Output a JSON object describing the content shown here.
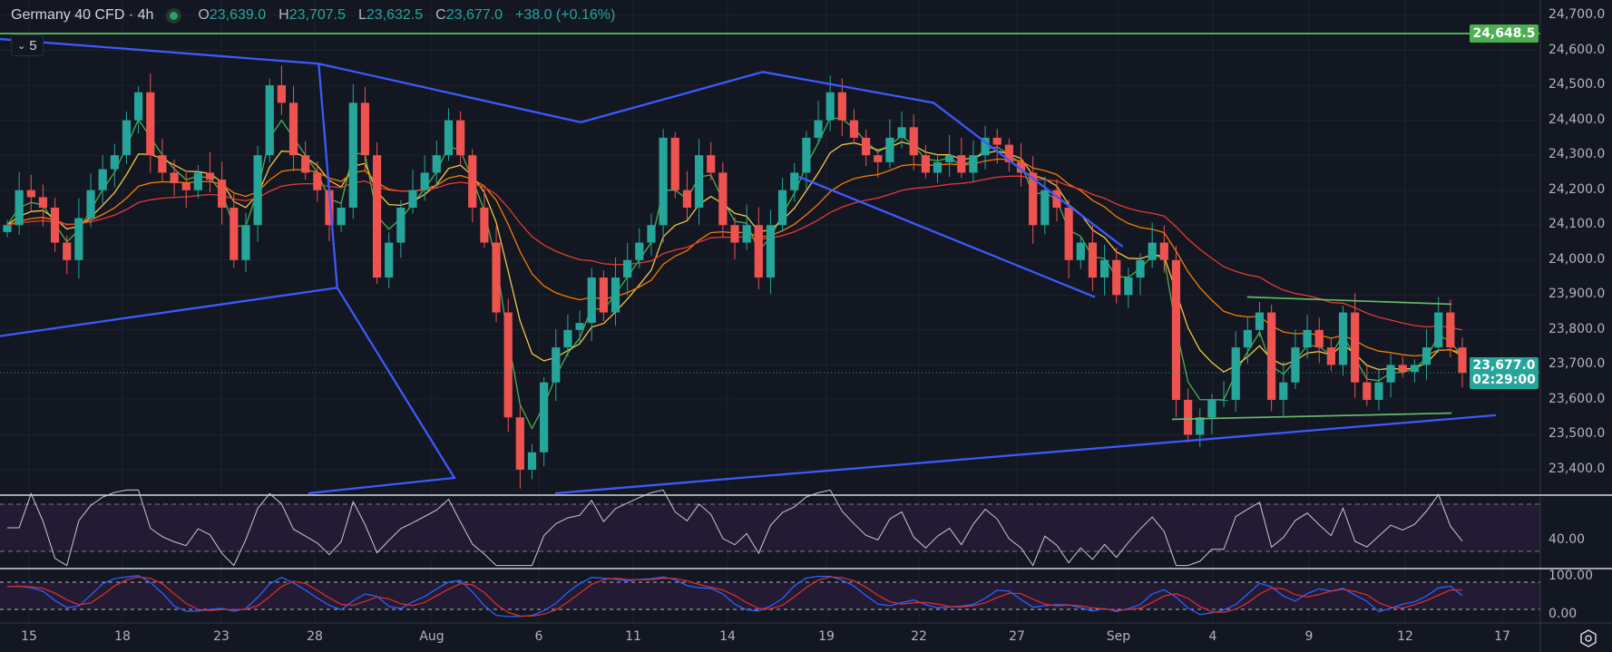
{
  "header": {
    "symbol": "Germany 40 CFD · 4h",
    "open_label": "O",
    "open": "23,639.0",
    "high_label": "H",
    "high": "23,707.5",
    "low_label": "L",
    "low": "23,632.5",
    "close_label": "C",
    "close": "23,677.0",
    "change": "+38.0 (+0.16%)",
    "market_status_icon": "market-open-dot",
    "collapse_count": "5"
  },
  "price_axis": {
    "ticks": [
      "24,700.0",
      "24,600.0",
      "24,500.0",
      "24,400.0",
      "24,300.0",
      "24,200.0",
      "24,100.0",
      "24,000.0",
      "23,900.0",
      "23,800.0",
      "23,700.0",
      "23,600.0",
      "23,500.0",
      "23,400.0"
    ],
    "alert_line_label": "24,648.5",
    "current_price_label": "23,677.0",
    "countdown": "02:29:00"
  },
  "rsi_axis": {
    "label": "40.00"
  },
  "stoch_axis": {
    "top": "100.00",
    "bottom": "0.00"
  },
  "time_axis": {
    "labels": [
      "15",
      "18",
      "23",
      "28",
      "Aug",
      "6",
      "11",
      "14",
      "19",
      "22",
      "27",
      "Sep",
      "4",
      "9",
      "12",
      "17"
    ]
  },
  "colors": {
    "background": "#131722",
    "up": "#26a69a",
    "down": "#ef5350",
    "ma_fast": "#4caf50",
    "ma_mid": "#f5c542",
    "ma_slow": "#f57c00",
    "ma_long": "#e53935",
    "trendline": "#3d5afe",
    "alert_line": "#4caf50",
    "rsi": "#c9cbd1",
    "stoch_k": "#2962ff",
    "stoch_d": "#d32f2f"
  },
  "chart_data": {
    "type": "candlestick",
    "title": "Germany 40 CFD · 4h",
    "ylim": [
      23350,
      24720
    ],
    "y_ticks": [
      23400,
      23500,
      23600,
      23700,
      23800,
      23900,
      24000,
      24100,
      24200,
      24300,
      24400,
      24500,
      24600,
      24700
    ],
    "alert_level": 24648.5,
    "last_price": 23677.0,
    "closes": [
      24100,
      24200,
      24180,
      24150,
      24050,
      24000,
      24120,
      24200,
      24260,
      24300,
      24400,
      24480,
      24300,
      24250,
      24220,
      24200,
      24250,
      24230,
      24150,
      24000,
      24100,
      24300,
      24500,
      24450,
      24300,
      24250,
      24200,
      24100,
      24150,
      24450,
      24300,
      23950,
      24050,
      24150,
      24200,
      24250,
      24300,
      24400,
      24300,
      24150,
      24050,
      23850,
      23550,
      23400,
      23450,
      23650,
      23750,
      23800,
      23820,
      23950,
      23850,
      23950,
      24000,
      24050,
      24100,
      24350,
      24200,
      24150,
      24300,
      24250,
      24100,
      24050,
      24100,
      23950,
      24100,
      24200,
      24250,
      24350,
      24400,
      24480,
      24400,
      24350,
      24300,
      24280,
      24350,
      24380,
      24300,
      24250,
      24280,
      24300,
      24250,
      24300,
      24350,
      24330,
      24280,
      24250,
      24100,
      24200,
      24150,
      24000,
      24050,
      23950,
      24000,
      23900,
      23950,
      24000,
      24050,
      24000,
      23600,
      23500,
      23550,
      23600,
      23600,
      23750,
      23800,
      23850,
      23600,
      23650,
      23750,
      23800,
      23750,
      23700,
      23850,
      23650,
      23600,
      23650,
      23700,
      23680,
      23700,
      23750,
      23850,
      23750,
      23677
    ],
    "moving_averages": [
      9,
      20,
      50,
      100
    ],
    "indicators": [
      "RSI",
      "Stochastic RSI"
    ],
    "rsi_levels": [
      70,
      30
    ],
    "stoch_levels": [
      80,
      20
    ]
  }
}
